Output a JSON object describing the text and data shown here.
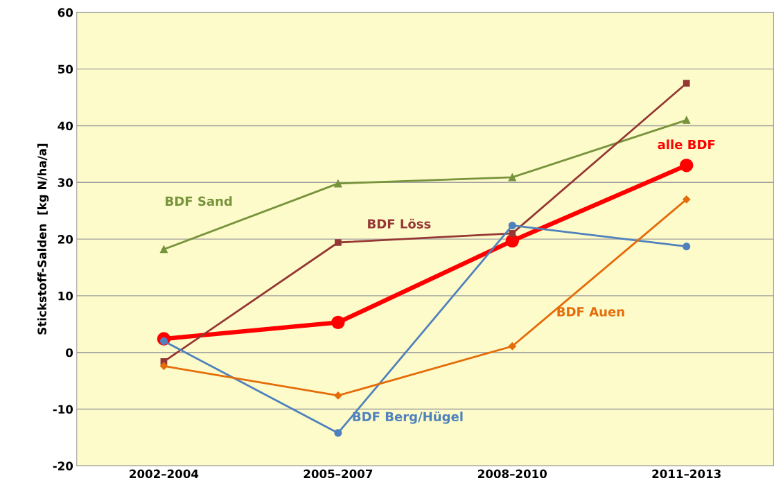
{
  "chart_data": {
    "type": "line",
    "ylabel": "Stickstoff-Salden  [kg N/ha/a]",
    "categories": [
      "2002–2004",
      "2005–2007",
      "2008–2010",
      "2011–2013"
    ],
    "series": [
      {
        "name": "BDF Sand",
        "color": "#77933c",
        "marker": "triangle",
        "values": [
          18.2,
          29.8,
          30.9,
          41.0
        ]
      },
      {
        "name": "BDF Löss",
        "color": "#953735",
        "marker": "square",
        "values": [
          -1.6,
          19.4,
          21.0,
          47.5
        ]
      },
      {
        "name": "BDF Berg/Hügel",
        "color": "#4f81bd",
        "marker": "circle",
        "values": [
          2.0,
          -14.2,
          22.4,
          18.7
        ]
      },
      {
        "name": "BDF Auen",
        "color": "#e46c0a",
        "marker": "diamond",
        "values": [
          -2.4,
          -7.6,
          1.1,
          27.0
        ]
      },
      {
        "name": "alle BDF",
        "color": "#ff0000",
        "marker": "circle",
        "values": [
          2.4,
          5.3,
          19.7,
          33.0
        ]
      }
    ],
    "ylim": [
      -20,
      60
    ],
    "yticks": [
      -20,
      -10,
      0,
      10,
      20,
      30,
      40,
      50,
      60
    ],
    "grid": "y",
    "legend": false
  }
}
